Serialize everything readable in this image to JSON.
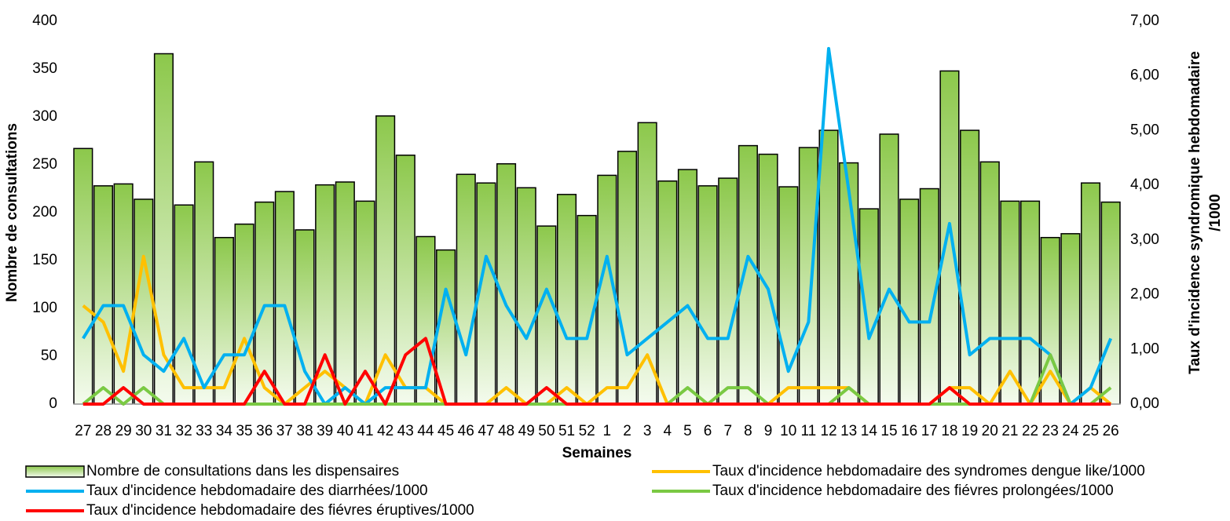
{
  "chart_data": {
    "type": "bar",
    "x_label": "Semaines",
    "y_label": "Nombre de consultations",
    "y2_label": [
      "Taux d'incidence syndromique hebdomadaire",
      "/1000"
    ],
    "categories": [
      "27",
      "28",
      "29",
      "30",
      "31",
      "32",
      "33",
      "34",
      "35",
      "36",
      "37",
      "38",
      "39",
      "40",
      "41",
      "42",
      "43",
      "44",
      "45",
      "46",
      "47",
      "48",
      "49",
      "50",
      "51",
      "52",
      "1",
      "2",
      "3",
      "4",
      "5",
      "6",
      "7",
      "8",
      "9",
      "10",
      "11",
      "12",
      "13",
      "14",
      "15",
      "16",
      "17",
      "18",
      "19",
      "20",
      "21",
      "22",
      "23",
      "24",
      "25",
      "26"
    ],
    "ylim": [
      0,
      400
    ],
    "yticks": [
      0,
      50,
      100,
      150,
      200,
      250,
      300,
      350,
      400
    ],
    "y2lim": [
      0,
      7
    ],
    "y2ticks": [
      {
        "value": 0,
        "label": "0,00"
      },
      {
        "value": 1,
        "label": "1,00"
      },
      {
        "value": 2,
        "label": "2,00"
      },
      {
        "value": 3,
        "label": "3,00"
      },
      {
        "value": 4,
        "label": "4,00"
      },
      {
        "value": 5,
        "label": "5,00"
      },
      {
        "value": 6,
        "label": "6,00"
      },
      {
        "value": 7,
        "label": "7,00"
      }
    ],
    "series": [
      {
        "name": "Nombre de consultations dans les dispensaires",
        "type": "bar",
        "color": "#92d050",
        "values": [
          267,
          228,
          230,
          214,
          366,
          208,
          253,
          174,
          188,
          211,
          222,
          182,
          229,
          232,
          212,
          301,
          260,
          175,
          161,
          240,
          231,
          251,
          226,
          186,
          219,
          197,
          239,
          264,
          294,
          233,
          245,
          228,
          236,
          270,
          261,
          227,
          268,
          286,
          252,
          204,
          282,
          214,
          225,
          348,
          286,
          253,
          212,
          212,
          174,
          178,
          231,
          211
        ]
      },
      {
        "name": "Taux d'incidence hebdomadaire des syndromes dengue like/1000",
        "type": "line",
        "axis": "y2",
        "color": "#ffc000",
        "values": [
          1.8,
          1.5,
          0.6,
          2.7,
          0.9,
          0.3,
          0.3,
          0.3,
          1.2,
          0.3,
          0,
          0.3,
          0.6,
          0.3,
          0,
          0.9,
          0.3,
          0.3,
          0,
          0,
          0,
          0.3,
          0,
          0,
          0.3,
          0,
          0.3,
          0.3,
          0.9,
          0,
          0,
          0,
          0,
          0,
          0,
          0.3,
          0.3,
          0.3,
          0.3,
          0,
          0,
          0,
          0,
          0.3,
          0.3,
          0,
          0.6,
          0,
          0.6,
          0,
          0.3,
          0
        ]
      },
      {
        "name": "Taux d'incidence hebdomadaire des diarrhées/1000",
        "type": "line",
        "axis": "y2",
        "color": "#00b0f0",
        "values": [
          1.2,
          1.8,
          1.8,
          0.9,
          0.6,
          1.2,
          0.3,
          0.9,
          0.9,
          1.8,
          1.8,
          0.6,
          0,
          0.3,
          0,
          0.3,
          0.3,
          0.3,
          2.1,
          0.9,
          2.7,
          1.8,
          1.2,
          2.1,
          1.2,
          1.2,
          2.7,
          0.9,
          1.2,
          1.5,
          1.8,
          1.2,
          1.2,
          2.7,
          2.1,
          0.6,
          1.5,
          6.5,
          3.9,
          1.2,
          2.1,
          1.5,
          1.5,
          3.3,
          0.9,
          1.2,
          1.2,
          1.2,
          0.9,
          0,
          0.3,
          1.2
        ]
      },
      {
        "name": "Taux d'incidence hebdomadaire des fiévres prolongées/1000",
        "type": "line",
        "axis": "y2",
        "color": "#7ac943",
        "values": [
          0,
          0.3,
          0,
          0.3,
          0,
          0,
          0,
          0,
          0,
          0,
          0,
          0,
          0,
          0,
          0,
          0,
          0,
          0,
          0,
          0,
          0,
          0,
          0,
          0,
          0,
          0,
          0,
          0,
          0,
          0,
          0.3,
          0,
          0.3,
          0.3,
          0,
          0,
          0,
          0,
          0.3,
          0,
          0,
          0,
          0,
          0,
          0,
          0,
          0,
          0,
          0.9,
          0,
          0,
          0.3
        ]
      },
      {
        "name": "Taux d'incidence hebdomadaire des fiévres éruptives/1000",
        "type": "line",
        "axis": "y2",
        "color": "#ff0000",
        "values": [
          0,
          0,
          0.3,
          0,
          0,
          0,
          0,
          0,
          0,
          0.6,
          0,
          0,
          0.9,
          0,
          0.6,
          0,
          0.9,
          1.2,
          0,
          0,
          0,
          0,
          0,
          0.3,
          0,
          0,
          0,
          0,
          0,
          0,
          0,
          0,
          0,
          0,
          0,
          0,
          0,
          0,
          0,
          0,
          0,
          0,
          0,
          0.3,
          0,
          0,
          0,
          0,
          0,
          0,
          0,
          0
        ]
      }
    ]
  }
}
